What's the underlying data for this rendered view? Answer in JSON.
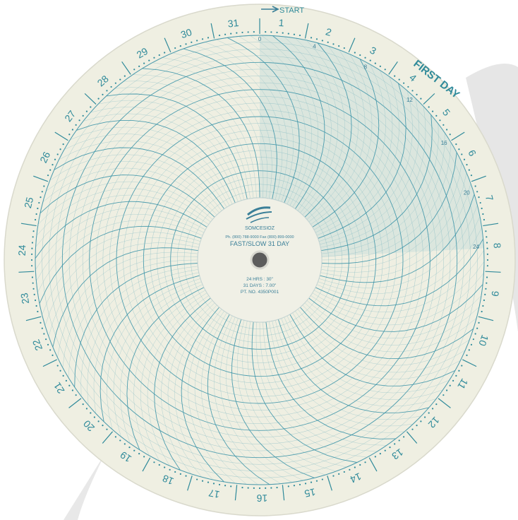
{
  "chart": {
    "start_label": "START",
    "first_day_label": "FIRST DAY",
    "brand": "SOMCESIOZ",
    "phone_line": "Ph. (800) 788-9000     Fax (800) 899-0000",
    "product": "FAST/SLOW  31 DAY",
    "spec_line_1": "24 HRS : 30\"",
    "spec_line_2": "31 DAYS : 7.00\"",
    "part_number": "PT. NO. 4350P001",
    "day_numbers": [
      "1",
      "2",
      "3",
      "4",
      "5",
      "6",
      "7",
      "8",
      "9",
      "10",
      "11",
      "12",
      "13",
      "14",
      "15",
      "16",
      "17",
      "18",
      "19",
      "20",
      "21",
      "22",
      "23",
      "24",
      "25",
      "26",
      "27",
      "28",
      "29",
      "30",
      "31"
    ],
    "hour_marks": [
      "0",
      "4",
      "8",
      "12",
      "16",
      "20",
      "24"
    ],
    "colors": {
      "paper": "#efefe2",
      "grid": "#7ab6c0",
      "grid_major": "#3d95a8",
      "ink": "#2f8a9a",
      "highlight_band": "#c9dbd6"
    }
  }
}
